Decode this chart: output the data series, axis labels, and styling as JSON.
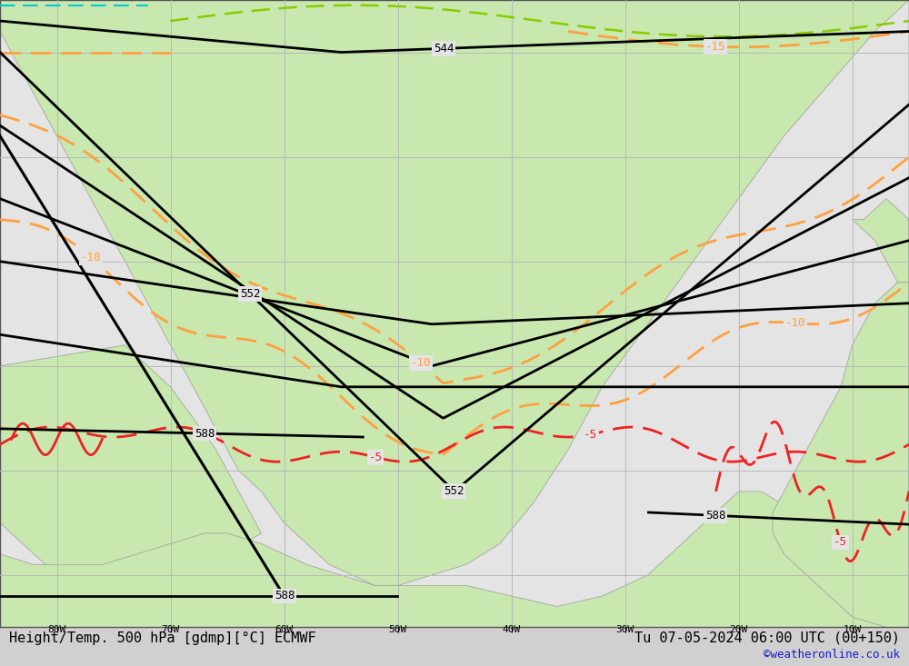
{
  "title_left": "Height/Temp. 500 hPa [gdmp][°C] ECMWF",
  "title_right": "Tu 07-05-2024 06:00 UTC (00+150)",
  "credit": "©weatheronline.co.uk",
  "bg_color": "#d0d0d0",
  "ocean_color": "#e4e4e4",
  "land_color": "#c8e8b0",
  "land_edge_color": "#999999",
  "grid_color": "#b8b8b8",
  "height_color": "#000000",
  "temp_orange_color": "#FFA040",
  "temp_red_color": "#EE2222",
  "temp_green_color": "#88CC00",
  "temp_cyan_color": "#00CCCC",
  "font_size_bottom": 11,
  "font_size_credit": 9,
  "font_size_label": 9,
  "lon_min": -85,
  "lon_max": -5,
  "lat_min": 5,
  "lat_max": 65,
  "lon_ticks": [
    -80,
    -70,
    -60,
    -50,
    -40,
    -30,
    -20,
    -10
  ],
  "lat_ticks": [
    10,
    20,
    30,
    40,
    50,
    60
  ]
}
